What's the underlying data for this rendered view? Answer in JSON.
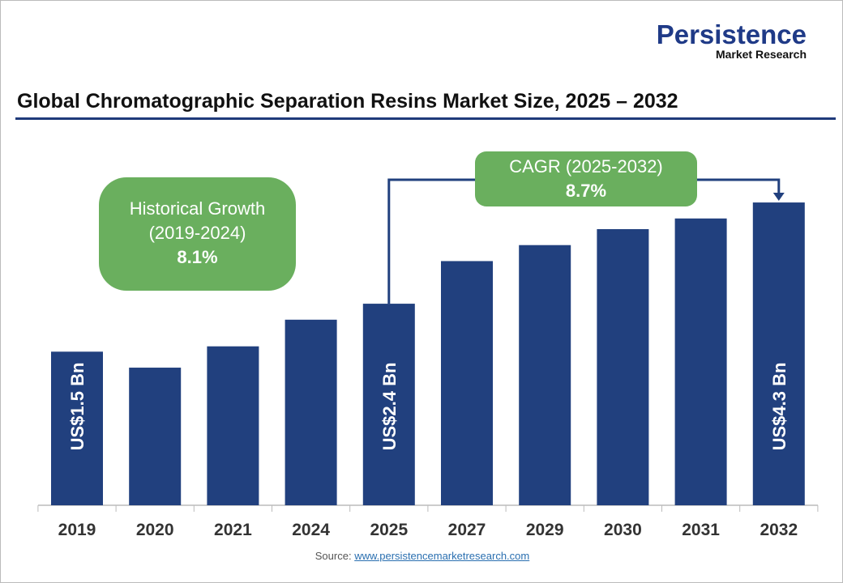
{
  "logo": {
    "line1": "Persistence",
    "line2": "Market Research"
  },
  "title": "Global Chromatographic Separation Resins Market Size, 2025 – 2032",
  "historical": {
    "label": "Historical Growth",
    "period": "(2019-2024)",
    "value": "8.1%"
  },
  "cagr": {
    "label": "CAGR (2025-2032)",
    "value": "8.7%"
  },
  "source": {
    "label": "Source:",
    "link": "www.persistencemarketresearch.com"
  },
  "colors": {
    "bar": "#21407e",
    "box": "#6aaf5e",
    "rule": "#1f3a7a"
  },
  "chart_data": {
    "type": "bar",
    "title": "Global Chromatographic Separation Resins Market Size, 2025 – 2032",
    "categories": [
      "2019",
      "2020",
      "2021",
      "2024",
      "2025",
      "2027",
      "2029",
      "2030",
      "2031",
      "2032"
    ],
    "values": [
      1.5,
      1.2,
      1.6,
      2.1,
      2.4,
      3.2,
      3.5,
      3.8,
      4.0,
      4.3
    ],
    "unit": "US$ Bn",
    "data_labels": {
      "2019": "US$1.5 Bn",
      "2025": "US$2.4 Bn",
      "2032": "US$4.3 Bn"
    },
    "grid": false,
    "legend": "none"
  }
}
